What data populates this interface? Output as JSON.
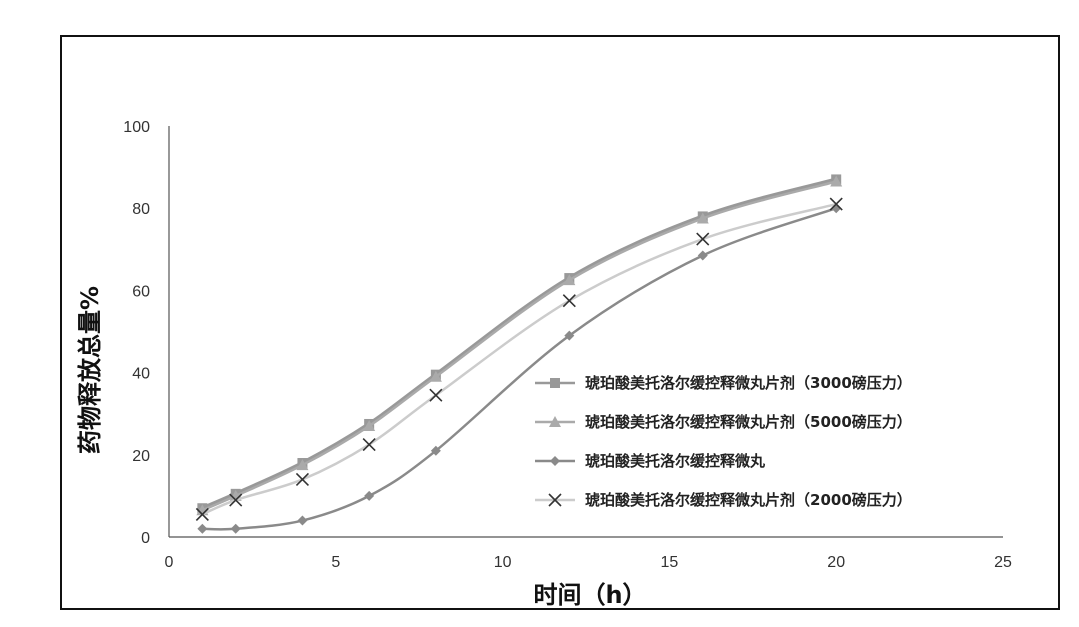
{
  "chart_data": {
    "type": "line",
    "xlabel": "时间（h）",
    "ylabel": "药物释放总量%",
    "xlim": [
      0,
      25
    ],
    "ylim": [
      0,
      100
    ],
    "xticks": [
      0,
      5,
      10,
      15,
      20,
      25
    ],
    "yticks": [
      0,
      20,
      40,
      60,
      80,
      100
    ],
    "grid": false,
    "legend_position": "right",
    "series": [
      {
        "name": "琥珀酸美托洛尔缓控释微丸片剂（3000磅压力）",
        "marker": "square",
        "color": "#999999",
        "x": [
          1,
          2,
          4,
          6,
          8,
          12,
          16,
          20
        ],
        "y": [
          7,
          10.5,
          18,
          27.5,
          39.5,
          63,
          78,
          87
        ]
      },
      {
        "name": "琥珀酸美托洛尔缓控释微丸片剂（5000磅压力）",
        "marker": "triangle",
        "color": "#aaaaaa",
        "x": [
          1,
          2,
          4,
          6,
          8,
          12,
          16,
          20
        ],
        "y": [
          6.5,
          10,
          17.5,
          27,
          39,
          62.5,
          77.5,
          86.5
        ]
      },
      {
        "name": "琥珀酸美托洛尔缓控释微丸",
        "marker": "diamond",
        "color": "#8a8a8a",
        "x": [
          1,
          2,
          4,
          6,
          8,
          12,
          16,
          20
        ],
        "y": [
          2,
          2,
          4,
          10,
          21,
          49,
          68.5,
          80
        ]
      },
      {
        "name": "琥珀酸美托洛尔缓控释微丸片剂（2000磅压力）",
        "marker": "x",
        "color": "#cccccc",
        "x": [
          1,
          2,
          4,
          6,
          8,
          12,
          16,
          20
        ],
        "y": [
          5.5,
          9,
          14,
          22.5,
          34.5,
          57.5,
          72.5,
          81
        ]
      }
    ]
  }
}
